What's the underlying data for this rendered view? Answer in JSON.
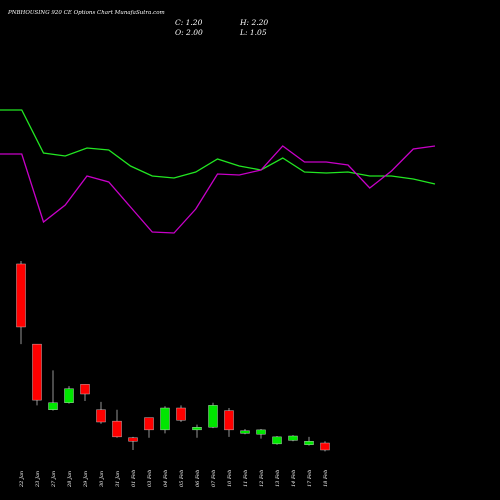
{
  "chart_data": [
    {
      "type": "line",
      "title": "PNBHOUSING 920 CE Options Chart MunafaSutra.com",
      "ohlc": {
        "close": "C: 1.20",
        "high": "H: 2.20",
        "open": "O: 2.00",
        "low": "L: 1.05"
      },
      "ylim": [
        0,
        150
      ],
      "series": [
        {
          "color": "#22e622",
          "values": [
            140,
            140,
            97,
            94,
            102,
            100,
            84,
            74,
            72,
            78,
            91,
            84,
            80,
            92,
            78,
            77,
            78,
            74,
            74,
            71,
            66
          ]
        },
        {
          "color": "#c800c8",
          "values": [
            96,
            96,
            28,
            45,
            74,
            68,
            43,
            18,
            17,
            41,
            76,
            75,
            80,
            104,
            88,
            88,
            85,
            62,
            79,
            101,
            104
          ]
        }
      ]
    },
    {
      "type": "candlestick",
      "up_color": "#00e600",
      "down_color": "#ff0000",
      "ylim": [
        0,
        25
      ],
      "categories": [
        "22 Jan",
        "23 Jan",
        "27 Jan",
        "28 Jan",
        "29 Jan",
        "30 Jan",
        "31 Jan",
        "01 Feb",
        "03 Feb",
        "04 Feb",
        "05 Feb",
        "06 Feb",
        "07 Feb",
        "10 Feb",
        "11 Feb",
        "12 Feb",
        "13 Feb",
        "14 Feb",
        "17 Feb",
        "18 Feb"
      ],
      "open": [
        22.46,
        13.3,
        5.8,
        6.6,
        8.7,
        5.8,
        4.5,
        2.6,
        4.9,
        3.5,
        6.0,
        3.5,
        3.8,
        5.7,
        3.1,
        3.0,
        1.9,
        2.3,
        1.8,
        2.0
      ],
      "close": [
        15.26,
        6.9,
        6.6,
        8.2,
        7.6,
        4.4,
        2.7,
        2.2,
        3.5,
        6.0,
        4.6,
        3.8,
        6.3,
        3.5,
        3.4,
        3.5,
        2.7,
        2.8,
        2.2,
        1.2
      ],
      "high": [
        22.8,
        13.3,
        10.3,
        8.5,
        8.7,
        6.7,
        5.8,
        2.7,
        4.9,
        6.2,
        6.3,
        4.1,
        6.6,
        6.0,
        3.6,
        3.6,
        2.8,
        2.9,
        2.7,
        2.2
      ],
      "low": [
        13.3,
        6.3,
        5.7,
        6.5,
        6.8,
        4.2,
        2.6,
        1.2,
        2.6,
        3.1,
        4.4,
        2.6,
        3.7,
        2.7,
        3.0,
        2.5,
        1.8,
        2.2,
        1.7,
        1.05
      ]
    }
  ]
}
